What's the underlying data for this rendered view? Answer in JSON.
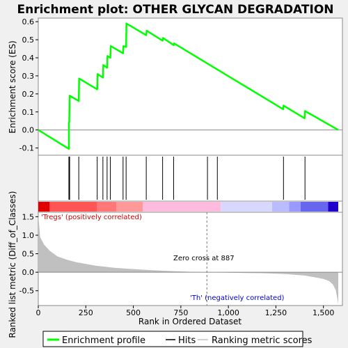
{
  "title": "Enrichment plot: OTHER GLYCAN DEGRADATION",
  "chart_data": [
    {
      "type": "line",
      "panel": "enrichment",
      "ylabel": "Enrichment score (ES)",
      "xlim": [
        0,
        1600
      ],
      "ylim": [
        -0.14,
        0.62
      ],
      "yticks": [
        -0.1,
        0.0,
        0.1,
        0.2,
        0.3,
        0.4,
        0.5,
        0.6
      ],
      "ytick_labels": [
        "-0.1",
        "0.0",
        "0.1",
        "0.2",
        "0.3",
        "0.4",
        "0.5",
        "0.6"
      ],
      "series": [
        {
          "name": "Enrichment profile",
          "color": "#00ff00",
          "points": [
            [
              0,
              0.0
            ],
            [
              161,
              -0.105
            ],
            [
              161,
              0.04
            ],
            [
              163,
              0.045
            ],
            [
              165,
              0.19
            ],
            [
              213,
              0.16
            ],
            [
              215,
              0.285
            ],
            [
              310,
              0.225
            ],
            [
              312,
              0.31
            ],
            [
              340,
              0.29
            ],
            [
              342,
              0.36
            ],
            [
              362,
              0.345
            ],
            [
              364,
              0.41
            ],
            [
              379,
              0.4
            ],
            [
              381,
              0.465
            ],
            [
              446,
              0.425
            ],
            [
              448,
              0.465
            ],
            [
              462,
              0.46
            ],
            [
              464,
              0.59
            ],
            [
              568,
              0.525
            ],
            [
              570,
              0.55
            ],
            [
              654,
              0.495
            ],
            [
              656,
              0.51
            ],
            [
              712,
              0.47
            ],
            [
              714,
              0.48
            ],
            [
              1288,
              0.115
            ],
            [
              1290,
              0.135
            ],
            [
              1401,
              0.065
            ],
            [
              1403,
              0.105
            ],
            [
              1578,
              0.0
            ]
          ]
        }
      ]
    },
    {
      "type": "hits",
      "panel": "hits",
      "series_name": "Hits",
      "positions": [
        161,
        163,
        165,
        213,
        310,
        340,
        362,
        379,
        446,
        462,
        568,
        654,
        712,
        890,
        942,
        1290,
        1403
      ]
    },
    {
      "type": "heatmap",
      "panel": "ranking-colorbar",
      "segments": [
        {
          "from": 0,
          "to": 60,
          "color": "#e00000"
        },
        {
          "from": 60,
          "to": 310,
          "color": "#ff5555"
        },
        {
          "from": 310,
          "to": 410,
          "color": "#ff7777"
        },
        {
          "from": 410,
          "to": 550,
          "color": "#ff9999"
        },
        {
          "from": 550,
          "to": 960,
          "color": "#ffbbdd"
        },
        {
          "from": 960,
          "to": 1230,
          "color": "#d8d8ff"
        },
        {
          "from": 1230,
          "to": 1320,
          "color": "#bbbbff"
        },
        {
          "from": 1320,
          "to": 1380,
          "color": "#9999ff"
        },
        {
          "from": 1380,
          "to": 1525,
          "color": "#6666ee"
        },
        {
          "from": 1525,
          "to": 1578,
          "color": "#2200cc"
        }
      ]
    },
    {
      "type": "area",
      "panel": "ranking-metric",
      "ylabel": "Ranked list metric (Diff_of_Classes)",
      "xlabel": "Rank in Ordered Dataset",
      "xlim": [
        0,
        1600
      ],
      "ylim": [
        -0.9,
        1.62
      ],
      "xticks": [
        0,
        250,
        500,
        750,
        1000,
        1250,
        1500
      ],
      "xtick_labels": [
        "0",
        "250",
        "500",
        "750",
        "1,000",
        "1,250",
        "1,500"
      ],
      "yticks": [
        -0.5,
        0.0,
        0.5,
        1.0,
        1.5
      ],
      "ytick_labels": [
        "-0.5",
        "0.0",
        "0.5",
        "1.0",
        "1.5"
      ],
      "series_name": "Ranking metric scores",
      "fill_color": "#c0c0c0",
      "points": [
        [
          0,
          1.55
        ],
        [
          10,
          0.95
        ],
        [
          30,
          0.75
        ],
        [
          60,
          0.58
        ],
        [
          100,
          0.43
        ],
        [
          150,
          0.34
        ],
        [
          200,
          0.27
        ],
        [
          300,
          0.18
        ],
        [
          400,
          0.12
        ],
        [
          500,
          0.085
        ],
        [
          600,
          0.055
        ],
        [
          700,
          0.03
        ],
        [
          800,
          0.012
        ],
        [
          887,
          0.0
        ],
        [
          1000,
          -0.01
        ],
        [
          1100,
          -0.02
        ],
        [
          1200,
          -0.03
        ],
        [
          1300,
          -0.05
        ],
        [
          1400,
          -0.09
        ],
        [
          1450,
          -0.13
        ],
        [
          1500,
          -0.18
        ],
        [
          1530,
          -0.24
        ],
        [
          1550,
          -0.33
        ],
        [
          1565,
          -0.48
        ],
        [
          1578,
          -0.85
        ]
      ],
      "zero_cross_rank": 887,
      "annotations": {
        "zero_cross": "Zero cross at 887",
        "positive": "'Tregs' (positively correlated)",
        "negative": "'Th' (negatively correlated)"
      }
    }
  ],
  "legend": {
    "items": [
      {
        "label": "Enrichment profile",
        "color": "#00ff00"
      },
      {
        "label": "Hits",
        "color": "#000000"
      },
      {
        "label": "Ranking metric scores",
        "color": "#c0c0c0"
      }
    ]
  }
}
